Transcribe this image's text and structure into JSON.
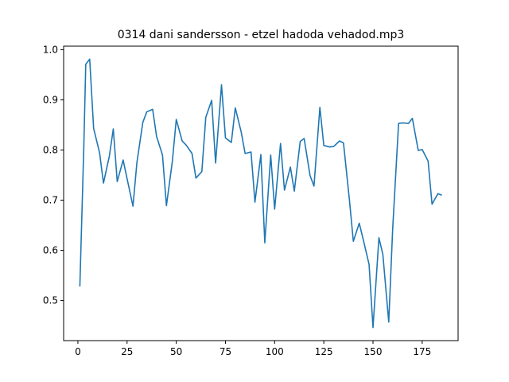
{
  "chart_data": {
    "type": "line",
    "title": "0314 dani sandersson - etzel hadoda vehadod.mp3",
    "xlabel": "",
    "ylabel": "",
    "xlim": [
      -7.25,
      193.25
    ],
    "ylim": [
      0.42,
      1.007
    ],
    "xticks": [
      0,
      25,
      50,
      75,
      100,
      125,
      150,
      175
    ],
    "yticks": [
      0.5,
      0.6,
      0.7,
      0.8,
      0.9,
      1.0
    ],
    "ytick_labels": [
      "0.5",
      "0.6",
      "0.7",
      "0.8",
      "0.9",
      "1.0"
    ],
    "grid": false,
    "line_color": "#1f77b4",
    "x": [
      1,
      3,
      4,
      6,
      8,
      11,
      13,
      16,
      18,
      20,
      23,
      25,
      28,
      30,
      33,
      35,
      38,
      40,
      43,
      45,
      48,
      50,
      53,
      55,
      58,
      60,
      63,
      65,
      68,
      70,
      73,
      75,
      78,
      80,
      83,
      85,
      88,
      90,
      93,
      95,
      98,
      100,
      103,
      105,
      108,
      110,
      113,
      115,
      118,
      120,
      123,
      125,
      128,
      130,
      133,
      135,
      138,
      140,
      143,
      145,
      148,
      150,
      153,
      155,
      158,
      160,
      163,
      165,
      168,
      170,
      173,
      175,
      178,
      180,
      183,
      185
    ],
    "y": [
      0.528,
      0.805,
      0.971,
      0.981,
      0.843,
      0.795,
      0.734,
      0.788,
      0.842,
      0.737,
      0.78,
      0.743,
      0.688,
      0.775,
      0.855,
      0.876,
      0.881,
      0.827,
      0.79,
      0.689,
      0.777,
      0.861,
      0.818,
      0.81,
      0.793,
      0.744,
      0.757,
      0.865,
      0.899,
      0.774,
      0.93,
      0.824,
      0.815,
      0.884,
      0.836,
      0.793,
      0.796,
      0.696,
      0.791,
      0.615,
      0.79,
      0.682,
      0.813,
      0.72,
      0.766,
      0.718,
      0.817,
      0.823,
      0.749,
      0.728,
      0.885,
      0.809,
      0.806,
      0.807,
      0.818,
      0.814,
      0.701,
      0.618,
      0.654,
      0.622,
      0.572,
      0.446,
      0.625,
      0.592,
      0.457,
      0.643,
      0.853,
      0.854,
      0.853,
      0.863,
      0.799,
      0.801,
      0.778,
      0.692,
      0.713,
      0.71
    ]
  }
}
